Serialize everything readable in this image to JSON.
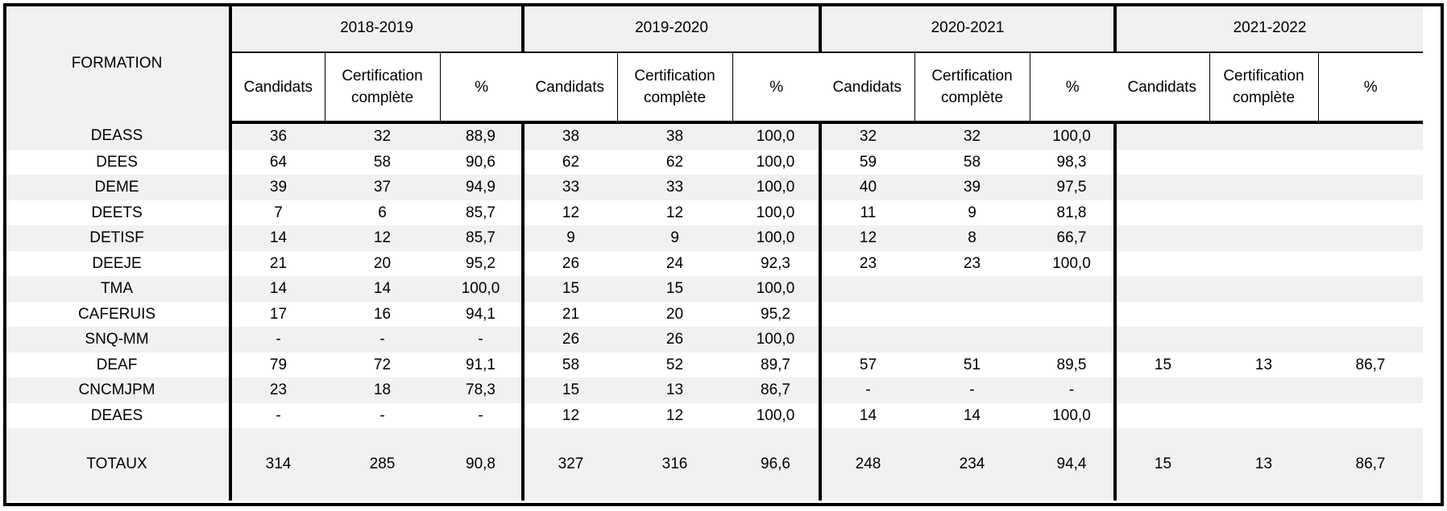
{
  "header": {
    "formation_label": "FORMATION",
    "years": [
      "2018-2019",
      "2019-2020",
      "2020-2021",
      "2021-2022"
    ],
    "sub_columns": {
      "candidats": "Candidats",
      "certification_line1": "Certification",
      "certification_line2": "complète",
      "percent": "%"
    }
  },
  "rows": [
    {
      "formation": "DEASS",
      "values": [
        [
          "36",
          "32",
          "88,9"
        ],
        [
          "38",
          "38",
          "100,0"
        ],
        [
          "32",
          "32",
          "100,0"
        ],
        [
          "",
          "",
          ""
        ]
      ]
    },
    {
      "formation": "DEES",
      "values": [
        [
          "64",
          "58",
          "90,6"
        ],
        [
          "62",
          "62",
          "100,0"
        ],
        [
          "59",
          "58",
          "98,3"
        ],
        [
          "",
          "",
          ""
        ]
      ]
    },
    {
      "formation": "DEME",
      "values": [
        [
          "39",
          "37",
          "94,9"
        ],
        [
          "33",
          "33",
          "100,0"
        ],
        [
          "40",
          "39",
          "97,5"
        ],
        [
          "",
          "",
          ""
        ]
      ]
    },
    {
      "formation": "DEETS",
      "values": [
        [
          "7",
          "6",
          "85,7"
        ],
        [
          "12",
          "12",
          "100,0"
        ],
        [
          "11",
          "9",
          "81,8"
        ],
        [
          "",
          "",
          ""
        ]
      ]
    },
    {
      "formation": "DETISF",
      "values": [
        [
          "14",
          "12",
          "85,7"
        ],
        [
          "9",
          "9",
          "100,0"
        ],
        [
          "12",
          "8",
          "66,7"
        ],
        [
          "",
          "",
          ""
        ]
      ]
    },
    {
      "formation": "DEEJE",
      "values": [
        [
          "21",
          "20",
          "95,2"
        ],
        [
          "26",
          "24",
          "92,3"
        ],
        [
          "23",
          "23",
          "100,0"
        ],
        [
          "",
          "",
          ""
        ]
      ]
    },
    {
      "formation": "TMA",
      "values": [
        [
          "14",
          "14",
          "100,0"
        ],
        [
          "15",
          "15",
          "100,0"
        ],
        [
          "",
          "",
          ""
        ],
        [
          "",
          "",
          ""
        ]
      ]
    },
    {
      "formation": "CAFERUIS",
      "values": [
        [
          "17",
          "16",
          "94,1"
        ],
        [
          "21",
          "20",
          "95,2"
        ],
        [
          "",
          "",
          ""
        ],
        [
          "",
          "",
          ""
        ]
      ]
    },
    {
      "formation": "SNQ-MM",
      "values": [
        [
          "-",
          "-",
          "-"
        ],
        [
          "26",
          "26",
          "100,0"
        ],
        [
          "",
          "",
          ""
        ],
        [
          "",
          "",
          ""
        ]
      ]
    },
    {
      "formation": "DEAF",
      "values": [
        [
          "79",
          "72",
          "91,1"
        ],
        [
          "58",
          "52",
          "89,7"
        ],
        [
          "57",
          "51",
          "89,5"
        ],
        [
          "15",
          "13",
          "86,7"
        ]
      ]
    },
    {
      "formation": "CNCMJPM",
      "values": [
        [
          "23",
          "18",
          "78,3"
        ],
        [
          "15",
          "13",
          "86,7"
        ],
        [
          "-",
          "-",
          "-"
        ],
        [
          "",
          "",
          ""
        ]
      ]
    },
    {
      "formation": "DEAES",
      "values": [
        [
          "-",
          "-",
          "-"
        ],
        [
          "12",
          "12",
          "100,0"
        ],
        [
          "14",
          "14",
          "100,0"
        ],
        [
          "",
          "",
          ""
        ]
      ]
    }
  ],
  "totals": {
    "label": "TOTAUX",
    "values": [
      [
        "314",
        "285",
        "90,8"
      ],
      [
        "327",
        "316",
        "96,6"
      ],
      [
        "248",
        "234",
        "94,4"
      ],
      [
        "15",
        "13",
        "86,7"
      ]
    ]
  }
}
